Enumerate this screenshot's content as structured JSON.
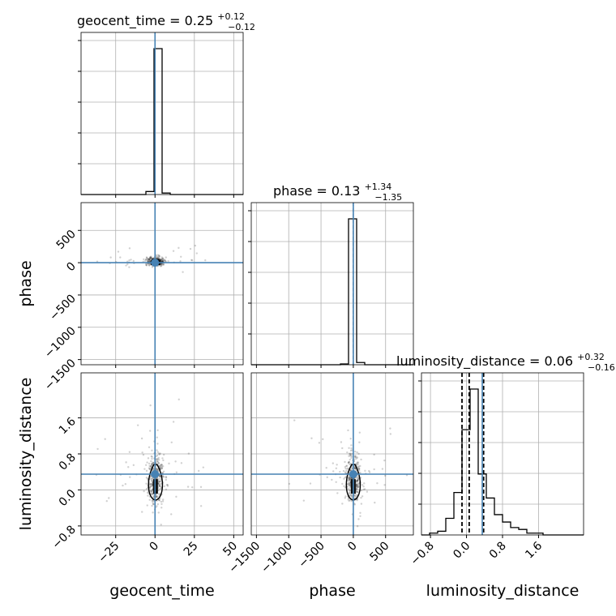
{
  "chart_data": {
    "type": "corner",
    "parameters": [
      "geocent_time",
      "phase",
      "luminosity_distance"
    ],
    "truths": {
      "geocent_time": 0.0,
      "phase": 0.0,
      "luminosity_distance": 0.35
    },
    "colors": {
      "truth": "#4682b4",
      "hist": "#000000",
      "grid": "#b0b0b0"
    },
    "grid": true,
    "titles": [
      {
        "label": "geocent_time = 0.25",
        "sup": "+0.12",
        "sub": "−0.12"
      },
      {
        "label": "phase = 0.13",
        "sup": "+1.34",
        "sub": "−1.35"
      },
      {
        "label": "luminosity_distance = 0.06",
        "sup": "+0.32",
        "sub": "−0.16"
      }
    ],
    "axes": {
      "geocent_time": {
        "range": [
          -47,
          56
        ],
        "ticks": [
          -25,
          0,
          25,
          50
        ],
        "tick_labels": [
          "−25",
          "0",
          "25",
          "50"
        ]
      },
      "phase": {
        "range": [
          -1580,
          930
        ],
        "ticks": [
          -1500,
          -1000,
          -500,
          0,
          500
        ],
        "tick_labels": [
          "−1500",
          "−1000",
          "−500",
          "0",
          "500"
        ]
      },
      "luminosity_distance": {
        "range": [
          -1.0,
          2.6
        ],
        "ticks": [
          -0.8,
          0.0,
          0.8,
          1.6
        ],
        "tick_labels": [
          "−0.8",
          "0.0",
          "0.8",
          "1.6"
        ]
      }
    },
    "axis_labels": {
      "x": [
        "geocent_time",
        "phase",
        "luminosity_distance"
      ],
      "y": [
        "phase",
        "luminosity_distance"
      ]
    },
    "histograms": {
      "geocent_time": {
        "edges": [
          -47,
          -41.85,
          -36.7,
          -31.55,
          -26.4,
          -21.25,
          -16.1,
          -10.95,
          -5.8,
          -0.65,
          4.5,
          9.65,
          14.8,
          19.95,
          25.1,
          30.25,
          35.4,
          40.55,
          45.7,
          50.85,
          56
        ],
        "counts": [
          0,
          0,
          0,
          0,
          0,
          0,
          0,
          0,
          0.02,
          0.98,
          0.01,
          0,
          0,
          0,
          0,
          0,
          0,
          0,
          0,
          0
        ]
      },
      "phase": {
        "edges": [
          -1580,
          -1454.5,
          -1329,
          -1203.5,
          -1078,
          -952.5,
          -827,
          -701.5,
          -576,
          -450.5,
          -325,
          -199.5,
          -74,
          51.5,
          177,
          302.5,
          428,
          553.5,
          679,
          804.5,
          930
        ],
        "counts": [
          0,
          0,
          0,
          0,
          0,
          0,
          0,
          0,
          0,
          0,
          0,
          0.005,
          0.98,
          0.015,
          0,
          0,
          0,
          0,
          0,
          0
        ]
      },
      "luminosity_distance": {
        "edges": [
          -1.0,
          -0.82,
          -0.64,
          -0.46,
          -0.28,
          -0.1,
          0.08,
          0.26,
          0.44,
          0.62,
          0.8,
          0.98,
          1.16,
          1.34,
          1.52,
          1.7,
          1.88,
          2.06,
          2.24,
          2.42,
          2.6
        ],
        "counts": [
          0,
          0.01,
          0.02,
          0.09,
          0.23,
          0.57,
          0.79,
          0.33,
          0.2,
          0.11,
          0.07,
          0.04,
          0.03,
          0.01,
          0.01,
          0,
          0,
          0,
          0,
          0
        ]
      }
    },
    "quantile_lines": {
      "luminosity_distance": [
        -0.1,
        0.06,
        0.38
      ]
    },
    "samples": {
      "pair_time_phase": {
        "x_center": 0.3,
        "x_spread": 2.5,
        "y_center": 0,
        "y_spread": 40
      },
      "pair_time_dist": {
        "x_center": 0.3,
        "x_spread": 2.5,
        "y_center": 0.06,
        "y_spread": 0.35
      },
      "pair_phase_dist": {
        "x_center": 0,
        "x_spread": 60,
        "y_center": 0.06,
        "y_spread": 0.35
      }
    }
  }
}
